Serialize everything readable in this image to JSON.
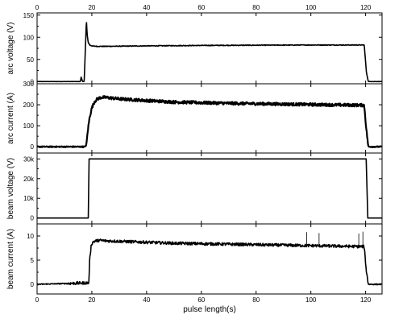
{
  "chart_data": {
    "type": "line",
    "shared_x": {
      "label": "pulse length(s)",
      "range": [
        0,
        126
      ],
      "ticks": [
        0,
        20,
        40,
        60,
        80,
        100,
        120
      ],
      "tick_labels": [
        "0",
        "20",
        "40",
        "60",
        "80",
        "100",
        "120"
      ],
      "top_ticks_shown": true
    },
    "grid": false,
    "legend": "none",
    "panels": [
      {
        "id": "arc-voltage",
        "ylabel": "arc voltage (V)",
        "ylim": [
          -5,
          155
        ],
        "yticks": [
          0,
          50,
          100,
          150
        ],
        "ytick_labels": [
          "0",
          "50",
          "100",
          "150"
        ],
        "series": [
          {
            "x": [
              0,
              15.8,
              16.1,
              16.6,
              17.2,
              17.8,
              18.0,
              18.3,
              18.7,
              19.3,
              20.5,
              22,
              25,
              30,
              40,
              60,
              80,
              100,
              110,
              119.5,
              120.3,
              121,
              126
            ],
            "y": [
              0,
              0,
              10,
              0,
              0,
              100,
              140,
              105,
              88,
              82,
              80,
              79.5,
              79.5,
              79.8,
              80.5,
              81.5,
              82,
              82.5,
              82.5,
              82.5,
              20,
              0,
              0
            ],
            "noise": 0.8
          }
        ]
      },
      {
        "id": "arc-current",
        "ylabel": "arc current (A)",
        "ylim": [
          -30,
          300
        ],
        "yticks": [
          0,
          100,
          200,
          300
        ],
        "ytick_labels": [
          "0",
          "100",
          "200",
          "300"
        ],
        "series": [
          {
            "x": [
              0,
              17.5,
              18.0,
              18.6,
              19.2,
              20,
              21,
              22,
              23.5,
              25,
              30,
              40,
              50,
              60,
              70,
              80,
              90,
              100,
              110,
              119.5,
              120.2,
              121,
              126
            ],
            "y": [
              0,
              0,
              10,
              85,
              140,
              185,
              215,
              228,
              235,
              235,
              228,
              220,
              213,
              210,
              207,
              205,
              203,
              201,
              199,
              198,
              90,
              0,
              0
            ],
            "noise": 7
          }
        ]
      },
      {
        "id": "beam-voltage",
        "ylabel": "beam voltage (V)",
        "ylim": [
          -3000,
          33000
        ],
        "yticks": [
          0,
          10000,
          20000,
          30000
        ],
        "ytick_labels": [
          "0",
          "10k",
          "20k",
          "30k"
        ],
        "series": [
          {
            "x": [
              0,
              18.7,
              19.0,
              126
            ],
            "y": [
              0,
              0,
              30000,
              30000
            ],
            "noise": 0,
            "post_drop": {
              "x": [
                120.2,
                120.8,
                126
              ],
              "y": [
                30000,
                0,
                0
              ]
            }
          }
        ]
      },
      {
        "id": "beam-current",
        "ylabel": "beam current (A)",
        "ylim": [
          -2,
          12.5
        ],
        "yticks": [
          0,
          5,
          10
        ],
        "ytick_labels": [
          "0",
          "5",
          "10"
        ],
        "series": [
          {
            "x": [
              0,
              18.9,
              19.2,
              19.8,
              20.5,
              21.5,
              23,
              25,
              30,
              40,
              50,
              60,
              70,
              80,
              90,
              100,
              110,
              119.5,
              120.2,
              121,
              126
            ],
            "y": [
              0,
              0.3,
              5,
              8.2,
              8.8,
              9.0,
              9.1,
              9.0,
              8.9,
              8.7,
              8.5,
              8.4,
              8.3,
              8.2,
              8.1,
              8.0,
              7.9,
              7.8,
              3,
              0,
              0
            ],
            "noise": 0.3,
            "spikes": [
              {
                "x": 98.5,
                "y": 10.8
              },
              {
                "x": 103,
                "y": 10.6
              },
              {
                "x": 117.5,
                "y": 10.5
              },
              {
                "x": 119,
                "y": 10.9
              }
            ]
          }
        ]
      }
    ]
  }
}
